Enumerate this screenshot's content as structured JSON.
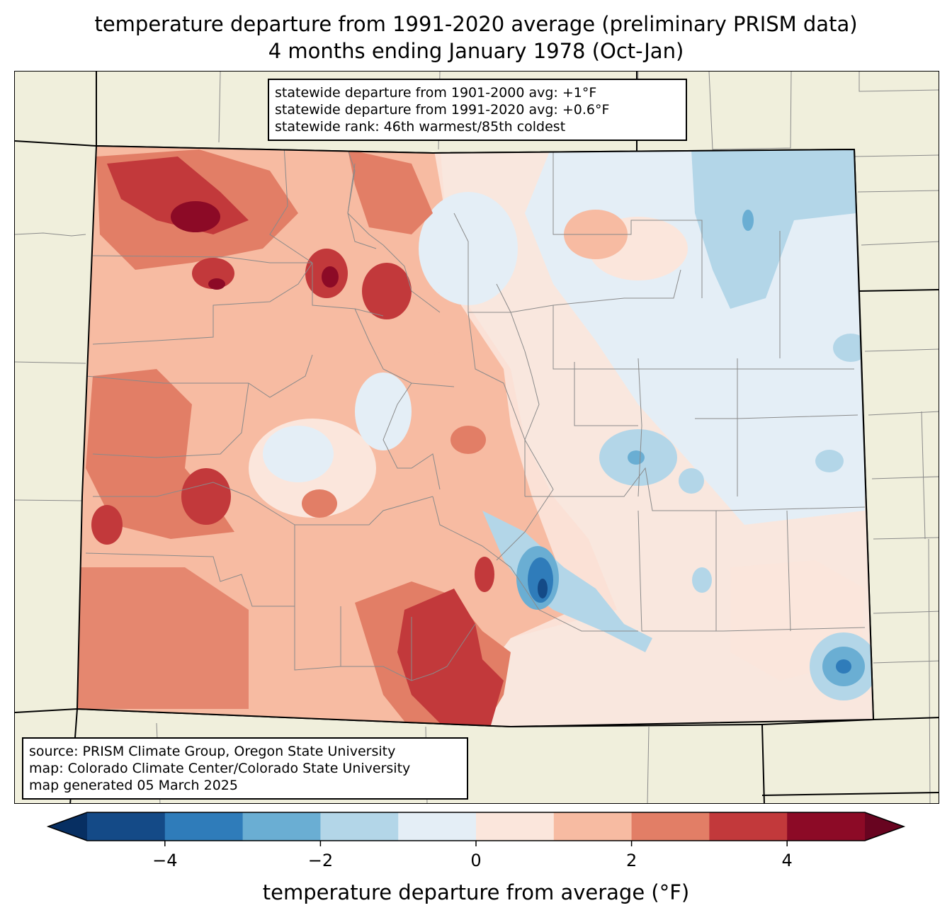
{
  "title_line1": "temperature departure from 1991-2020 average (preliminary PRISM data)",
  "title_line2": "4 months ending January 1978 (Oct-Jan)",
  "stats": {
    "line1": "statewide departure from 1901-2000 avg: +1°F",
    "line2": "statewide departure from 1991-2020 avg: +0.6°F",
    "line3": "statewide rank: 46th warmest/85th coldest"
  },
  "credits": {
    "line1": "source: PRISM Climate Group, Oregon State University",
    "line2": "map: Colorado Climate Center/Colorado State University",
    "line3": "map generated 05 March 2025"
  },
  "colorbar": {
    "label": "temperature departure from average (°F)",
    "ticks": [
      {
        "value": -4,
        "label": "−4"
      },
      {
        "value": -2,
        "label": "−2"
      },
      {
        "value": 0,
        "label": "0"
      },
      {
        "value": 2,
        "label": "2"
      },
      {
        "value": 4,
        "label": "4"
      }
    ],
    "range": [
      -5,
      5
    ],
    "bins": [
      {
        "from": -5,
        "to": -4,
        "color": "#144a87"
      },
      {
        "from": -4,
        "to": -3,
        "color": "#2f7cba"
      },
      {
        "from": -3,
        "to": -2,
        "color": "#6aaed3"
      },
      {
        "from": -2,
        "to": -1,
        "color": "#b3d6e8"
      },
      {
        "from": -1,
        "to": 0,
        "color": "#e4eef6"
      },
      {
        "from": 0,
        "to": 1,
        "color": "#fbe6dc"
      },
      {
        "from": 1,
        "to": 2,
        "color": "#f7bba2"
      },
      {
        "from": 2,
        "to": 3,
        "color": "#e27e66"
      },
      {
        "from": 3,
        "to": 4,
        "color": "#c2393b"
      },
      {
        "from": 4,
        "to": 5,
        "color": "#8c0a26"
      }
    ],
    "under_color": "#072f62",
    "over_color": "#680420"
  },
  "colors": {
    "land_background": "#f0efdc",
    "county_lines": "#8a8a8a",
    "state_lines": "#000000"
  }
}
